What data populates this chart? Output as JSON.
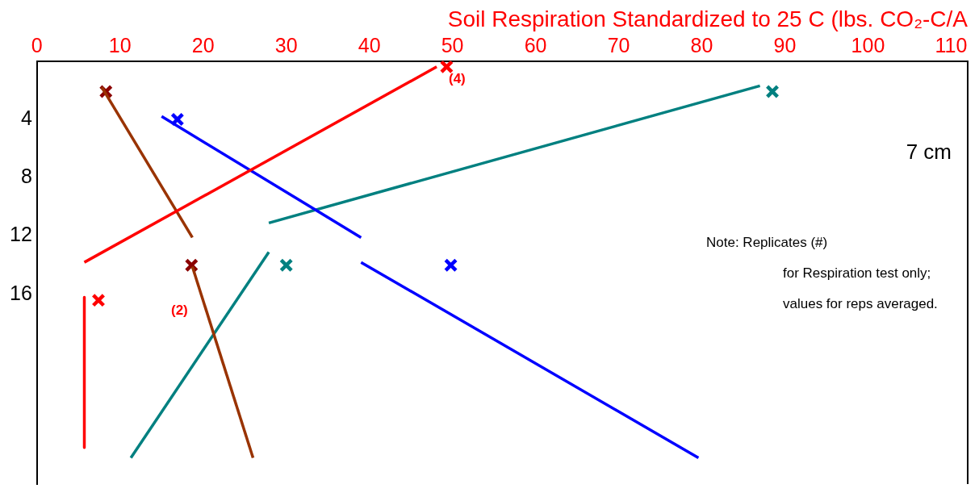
{
  "chart_data": {
    "type": "line",
    "xlabel": "Soil Respiration Standardized to 25 C (lbs. CO₂-C/A",
    "xlim": [
      0,
      112
    ],
    "xticks": [
      0,
      10,
      20,
      30,
      40,
      50,
      60,
      70,
      80,
      90,
      100,
      110
    ],
    "ylim": [
      29,
      0
    ],
    "yticks": [
      4,
      8,
      12,
      16
    ],
    "grid": false,
    "legend": false,
    "marker": "none",
    "line_style": "solid",
    "series": [
      {
        "color": "#ff0000",
        "x": [
          5.7,
          48.1
        ],
        "values": [
          13.8,
          0.4
        ]
      },
      {
        "color": "#ff0000",
        "x": [
          5.7,
          5.7
        ],
        "values": [
          16.2,
          26.5
        ]
      },
      {
        "color": "#993300",
        "x": [
          7.8,
          18.7
        ],
        "values": [
          1.8,
          12.1
        ]
      },
      {
        "color": "#993300",
        "x": [
          18.7,
          26.0
        ],
        "values": [
          14.1,
          27.2
        ]
      },
      {
        "color": "#0000ff",
        "x": [
          15.0,
          39.0
        ],
        "values": [
          3.8,
          12.1
        ]
      },
      {
        "color": "#0000ff",
        "x": [
          39.0,
          79.6
        ],
        "values": [
          13.8,
          27.2
        ]
      },
      {
        "color": "#008080",
        "x": [
          27.9,
          87.0
        ],
        "values": [
          11.1,
          1.7
        ]
      },
      {
        "color": "#008080",
        "x": [
          11.3,
          27.9
        ],
        "values": [
          27.2,
          13.1
        ]
      },
      {
        "type": "scatter",
        "marker": "cross",
        "color": "#ff0000",
        "x": [
          7.4,
          49.3
        ],
        "values": [
          16.4,
          0.4
        ]
      },
      {
        "type": "scatter",
        "marker": "cross",
        "color": "#8b0000",
        "x": [
          8.3,
          18.6
        ],
        "values": [
          2.1,
          14.0
        ]
      },
      {
        "type": "scatter",
        "marker": "cross",
        "color": "#0000ff",
        "x": [
          16.9,
          49.8
        ],
        "values": [
          4.0,
          14.0
        ]
      },
      {
        "type": "scatter",
        "marker": "cross",
        "color": "#008080",
        "x": [
          88.5,
          30.0
        ],
        "values": [
          2.1,
          14.0
        ]
      }
    ],
    "annotations": [
      "(4)",
      "(2)",
      "7 cm",
      "Note: Replicates (#)",
      "for Respiration test only;",
      "values for reps averaged."
    ]
  }
}
